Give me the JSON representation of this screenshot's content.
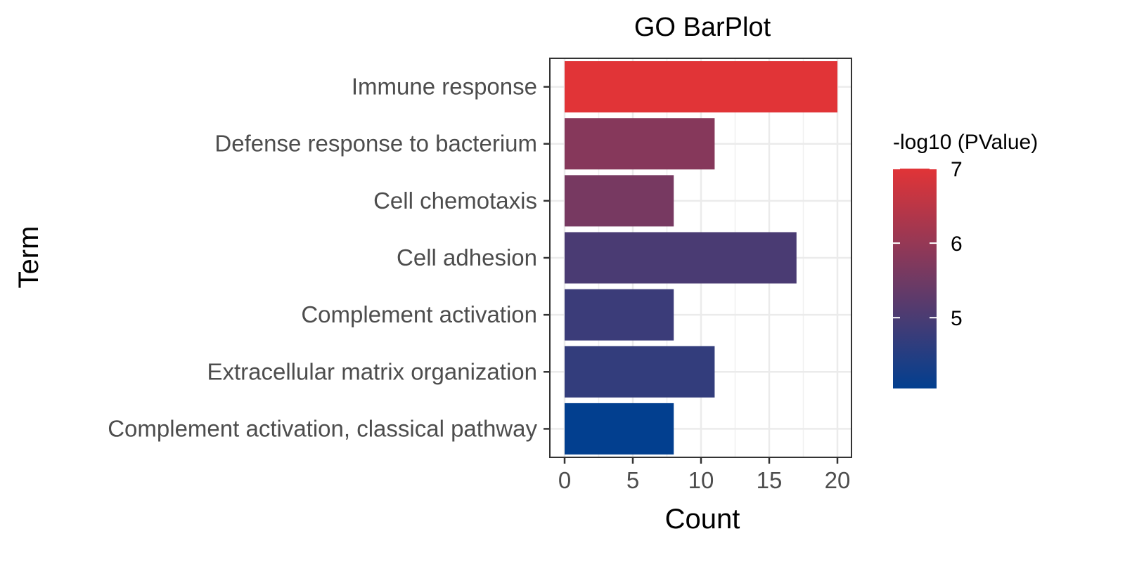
{
  "chart_data": {
    "type": "bar",
    "orientation": "horizontal",
    "title": "GO BarPlot",
    "xlabel": "Count",
    "ylabel": "Term",
    "xlim": [
      0,
      21
    ],
    "x_ticks": [
      0,
      5,
      10,
      15,
      20
    ],
    "grid": true,
    "categories": [
      "Immune response",
      "Defense response to bacterium",
      "Cell chemotaxis",
      "Cell adhesion",
      "Complement activation",
      "Extracellular matrix organization",
      "Complement activation, classical pathway"
    ],
    "values": [
      20,
      11,
      8,
      17,
      8,
      11,
      8
    ],
    "color_values": [
      7.0,
      5.8,
      5.6,
      5.0,
      4.8,
      4.7,
      4.05
    ],
    "legend": {
      "title": "-log10 (PValue)",
      "position": "right",
      "ticks": [
        5,
        6,
        7
      ],
      "range": [
        4.05,
        7.0
      ],
      "low_color": "#023f8f",
      "high_color": "#e13437"
    }
  }
}
